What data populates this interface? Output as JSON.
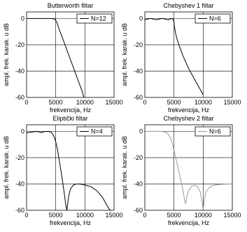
{
  "chart_data": [
    {
      "type": "line",
      "title": "Butterworth filtar",
      "xlabel": "frekvencija, Hz",
      "ylabel": "ampl. frek. karak. u dB",
      "xlim": [
        0,
        15000
      ],
      "ylim": [
        -60,
        5
      ],
      "xticks": [
        "0",
        "5000",
        "10000",
        "15000"
      ],
      "yticks": [
        "0",
        "-20",
        "-40",
        "-60"
      ],
      "grid": true,
      "legend_position": "top-right",
      "line_color": "#000000",
      "series": [
        {
          "name": "N=12",
          "x": [
            0,
            1000,
            2000,
            3000,
            4000,
            4500,
            4800,
            5000,
            5200,
            5500,
            6000,
            6500,
            7000,
            7500,
            8000,
            8500,
            9000,
            9500,
            9800
          ],
          "y": [
            0,
            0,
            0,
            0,
            0,
            -0.1,
            -0.5,
            -1.5,
            -3,
            -7,
            -13,
            -19,
            -25,
            -31,
            -37,
            -43,
            -49,
            -55,
            -60
          ]
        }
      ]
    },
    {
      "type": "line",
      "title": "Chebyshev 1 filtar",
      "xlabel": "frekvencija, Hz",
      "ylabel": "ampl. frek. karak. u dB",
      "xlim": [
        0,
        15000
      ],
      "ylim": [
        -60,
        5
      ],
      "xticks": [
        "0",
        "5000",
        "10000",
        "15000"
      ],
      "yticks": [
        "0",
        "-20",
        "-40",
        "-60"
      ],
      "grid": true,
      "legend_position": "top-right",
      "line_color": "#000000",
      "series": [
        {
          "name": "N=6",
          "x": [
            0,
            500,
            1000,
            1500,
            2000,
            2500,
            3000,
            3500,
            4000,
            4400,
            4700,
            4900,
            5000,
            5100,
            5300,
            5600,
            6000,
            6500,
            7000,
            7500,
            8000,
            8500,
            9000,
            9500,
            10000
          ],
          "y": [
            -1,
            -0.4,
            0,
            -0.5,
            -1,
            -0.4,
            0,
            -0.5,
            -1,
            -0.3,
            0,
            -1,
            -3,
            -7,
            -12,
            -17,
            -22,
            -28,
            -33,
            -38,
            -42,
            -46,
            -50,
            -54,
            -58
          ]
        }
      ]
    },
    {
      "type": "line",
      "title": "Eliptički filtar",
      "xlabel": "frekvencija, Hz",
      "ylabel": "ampl. frek. karak. u dB",
      "xlim": [
        0,
        15000
      ],
      "ylim": [
        -60,
        5
      ],
      "xticks": [
        "0",
        "5000",
        "10000",
        "15000"
      ],
      "yticks": [
        "0",
        "-20",
        "-40",
        "-60"
      ],
      "grid": true,
      "legend_position": "top-right",
      "line_color": "#000000",
      "series": [
        {
          "name": "N=4",
          "x": [
            0,
            500,
            1000,
            1500,
            2000,
            2500,
            3000,
            3500,
            4000,
            4300,
            4600,
            4800,
            5000,
            5300,
            5600,
            6000,
            6400,
            6700,
            6900,
            7000,
            7200,
            7500,
            8000,
            8500,
            9000,
            9500,
            10000,
            11000,
            12000,
            13000,
            13500,
            14000,
            14300,
            14500
          ],
          "y": [
            -1,
            -0.8,
            -0.5,
            -0.1,
            -0.3,
            -0.9,
            -0.3,
            0,
            -0.3,
            -1,
            -3,
            -5,
            -8,
            -14,
            -22,
            -33,
            -45,
            -55,
            -60,
            -57,
            -50,
            -44,
            -41,
            -40,
            -40,
            -40.3,
            -40.8,
            -42,
            -45,
            -50,
            -54,
            -58,
            -60,
            -60
          ]
        }
      ]
    },
    {
      "type": "line",
      "title": "Chebyshev 2 filtar",
      "xlabel": "frekvencija, Hz",
      "ylabel": "ampl. frek. karak. u dB",
      "xlim": [
        0,
        15000
      ],
      "ylim": [
        -60,
        5
      ],
      "xticks": [
        "0",
        "5000",
        "10000",
        "15000"
      ],
      "yticks": [
        "0",
        "-20",
        "-40",
        "-60"
      ],
      "grid": true,
      "legend_position": "top-right",
      "line_color": "#9a9a9a",
      "series": [
        {
          "name": "N=6",
          "x": [
            0,
            1000,
            2000,
            3000,
            3500,
            4000,
            4500,
            5000,
            5500,
            6000,
            6500,
            6800,
            7000,
            7200,
            7500,
            8000,
            8500,
            9000,
            9500,
            9800,
            10000,
            10200,
            10500,
            11000,
            11500,
            12000,
            13000,
            14000,
            15000
          ],
          "y": [
            0,
            0,
            0,
            -0.1,
            -0.5,
            -2,
            -6,
            -14,
            -24,
            -34,
            -44,
            -52,
            -55,
            -50,
            -45,
            -42,
            -41,
            -42,
            -46,
            -53,
            -60,
            -52,
            -46,
            -43,
            -41.5,
            -40.8,
            -40.3,
            -40.1,
            -40
          ]
        }
      ]
    }
  ]
}
